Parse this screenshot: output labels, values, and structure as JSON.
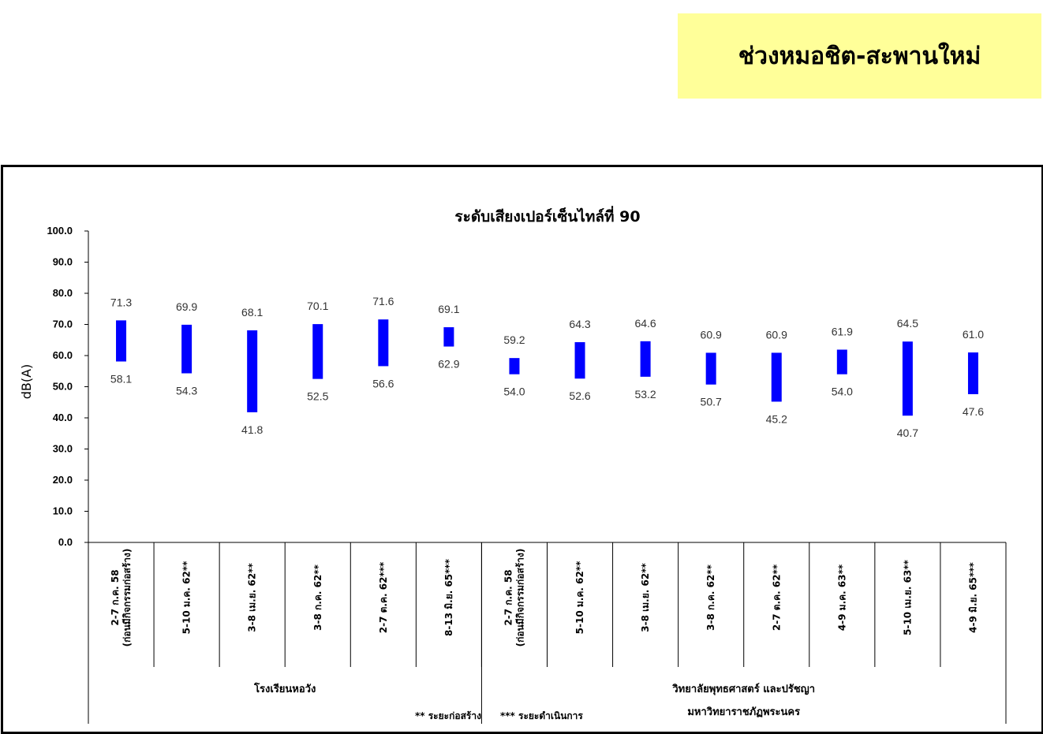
{
  "banner": {
    "text": "ช่วงหมอชิต-สะพานใหม่"
  },
  "colors": {
    "banner_bg": "#ffff99",
    "bar": "#0000ff"
  },
  "chart_data": {
    "type": "bar",
    "subtype": "floating-range",
    "title": "ระดับเสียงเปอร์เซ็นไทล์ที่ 90",
    "ylabel": "dB(A)",
    "ylim": [
      0,
      100
    ],
    "yticks": [
      "0.0",
      "10.0",
      "20.0",
      "30.0",
      "40.0",
      "50.0",
      "60.0",
      "70.0",
      "80.0",
      "90.0",
      "100.0"
    ],
    "grid": false,
    "categories": [
      [
        "2-7 ก.ค. 58",
        "(ก่อนมีกิจกรรมก่อสร้าง)"
      ],
      [
        "5-10 ม.ค. 62**"
      ],
      [
        "3-8 เม.ย. 62**"
      ],
      [
        "3-8 ก.ค. 62**"
      ],
      [
        "2-7 ต.ค. 62***"
      ],
      [
        "8-13 มิ.ย. 65***"
      ],
      [
        "2-7 ก.ค. 58",
        "(ก่อนมีกิจกรรมก่อสร้าง)"
      ],
      [
        "5-10 ม.ค. 62**"
      ],
      [
        "3-8 เม.ย. 62**"
      ],
      [
        "3-8 ก.ค. 62**"
      ],
      [
        "2-7 ต.ค. 62**"
      ],
      [
        "4-9 ม.ค. 63**"
      ],
      [
        "5-10 เม.ย. 63**"
      ],
      [
        "4-9 มิ.ย. 65***"
      ]
    ],
    "series": [
      {
        "name": "max",
        "values": [
          71.3,
          69.9,
          68.1,
          70.1,
          71.6,
          69.1,
          59.2,
          64.3,
          64.6,
          60.9,
          60.9,
          61.9,
          64.5,
          61.0
        ],
        "labels": [
          "71.3",
          "69.9",
          "68.1",
          "70.1",
          "71.6",
          "69.1",
          "59.2",
          "64.3",
          "64.6",
          "60.9",
          "60.9",
          "61.9",
          "64.5",
          "61.0"
        ]
      },
      {
        "name": "min",
        "values": [
          58.1,
          54.3,
          41.8,
          52.5,
          56.6,
          62.9,
          54.0,
          52.6,
          53.2,
          50.7,
          45.2,
          54.0,
          40.7,
          47.6
        ],
        "labels": [
          "58.1",
          "54.3",
          "41.8",
          "52.5",
          "56.6",
          "62.9",
          "54.0",
          "52.6",
          "53.2",
          "50.7",
          "45.2",
          "54.0",
          "40.7",
          "47.6"
        ]
      }
    ],
    "groups": [
      {
        "label_lines": [
          "โรงเรียนหอวัง"
        ],
        "count": 6
      },
      {
        "label_lines": [
          "วิทยาลัยพุทธศาสตร์ และปรัชญา",
          "มหาวิทยาราชภัฏพระนคร"
        ],
        "count": 8
      }
    ],
    "annotations": [
      "** ระยะก่อสร้าง",
      "*** ระยะดำเนินการ"
    ]
  }
}
